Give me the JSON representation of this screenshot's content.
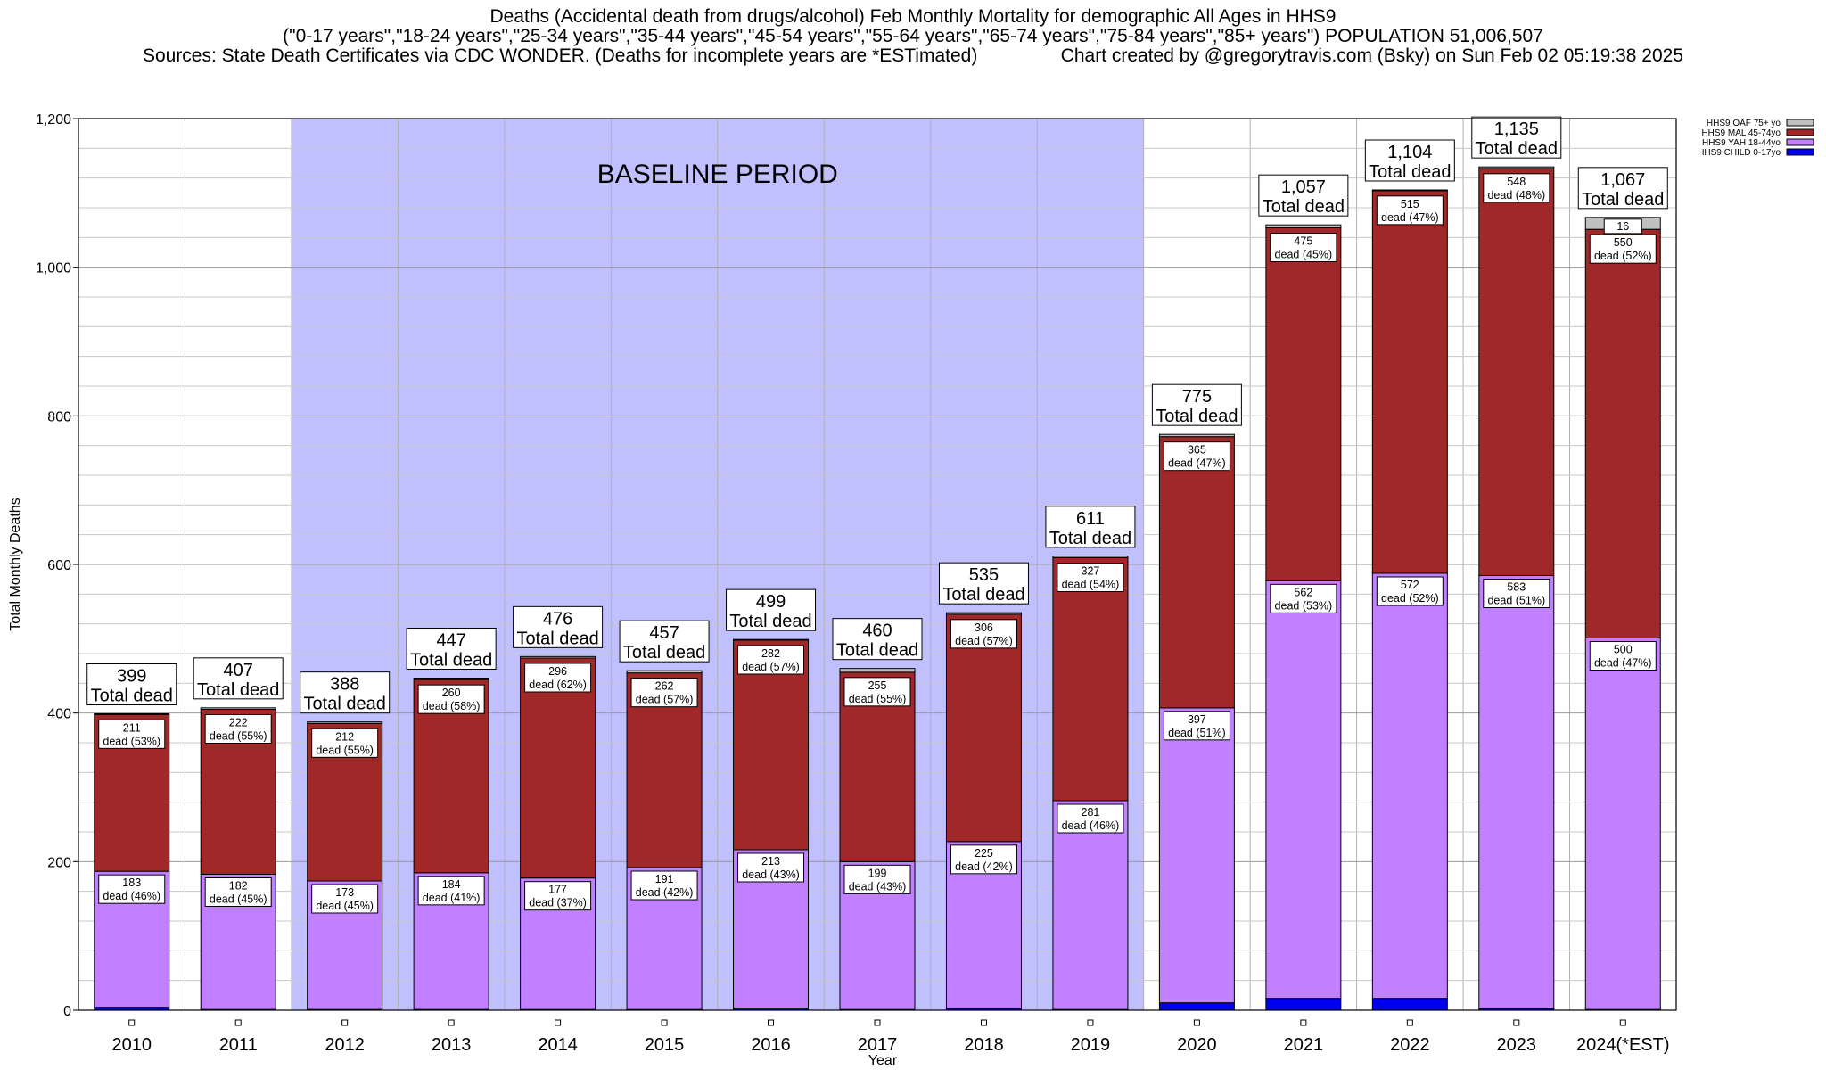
{
  "title": {
    "line1": "Deaths (Accidental death from drugs/alcohol) Feb Monthly Mortality for demographic All Ages in HHS9",
    "line2": "(\"0-17 years\",\"18-24 years\",\"25-34 years\",\"35-44 years\",\"45-54 years\",\"55-64 years\",\"65-74 years\",\"75-84 years\",\"85+ years\") POPULATION 51,006,507",
    "line3": "Sources: State Death Certificates via CDC WONDER. (Deaths for incomplete years are *ESTimated)                Chart created by @gregorytravis.com (Bsky) on Sun Feb 02 05:19:38 2025"
  },
  "chart_data": {
    "type": "bar",
    "stacked": true,
    "xlabel": "Year",
    "ylabel": "Total Monthly Deaths",
    "ylim": [
      0,
      1200
    ],
    "yticks": [
      0,
      200,
      400,
      600,
      800,
      1000,
      1200
    ],
    "ytick_labels": [
      "0",
      "200",
      "400",
      "600",
      "800",
      "1,000",
      "1,200"
    ],
    "grid": true,
    "legend_position": "top-right",
    "categories": [
      "2010",
      "2011",
      "2012",
      "2013",
      "2014",
      "2015",
      "2016",
      "2017",
      "2018",
      "2019",
      "2020",
      "2021",
      "2022",
      "2023",
      "2024(*EST)"
    ],
    "totals": [
      399,
      407,
      388,
      447,
      476,
      457,
      499,
      460,
      535,
      611,
      775,
      1057,
      1104,
      1135,
      1067
    ],
    "total_labels": [
      "399",
      "407",
      "388",
      "447",
      "476",
      "457",
      "499",
      "460",
      "535",
      "611",
      "775",
      "1,057",
      "1,104",
      "1,135",
      "1,067"
    ],
    "total_suffix": "Total dead",
    "series": [
      {
        "name": "HHS9 CHILD 0-17yo",
        "color": "#0000ee",
        "values": [
          4,
          1,
          1,
          1,
          1,
          1,
          3,
          1,
          2,
          1,
          10,
          16,
          16,
          2,
          1
        ]
      },
      {
        "name": "HHS9 YAH 18-44yo",
        "color": "#c080ff",
        "values": [
          183,
          182,
          173,
          184,
          177,
          191,
          213,
          199,
          225,
          281,
          397,
          562,
          572,
          583,
          500
        ]
      },
      {
        "name": "HHS9 MAL 45-74yo",
        "color": "#a02828",
        "values": [
          211,
          222,
          212,
          260,
          296,
          262,
          282,
          255,
          306,
          327,
          365,
          475,
          515,
          548,
          550
        ]
      },
      {
        "name": "HHS9 OAF 75+ yo",
        "color": "#c0c0c0",
        "values": [
          1,
          2,
          2,
          2,
          2,
          3,
          1,
          5,
          2,
          2,
          3,
          4,
          1,
          2,
          16
        ]
      }
    ],
    "segment_labels": {
      "yah": [
        "183\ndead (46%)",
        "182\ndead (45%)",
        "173\ndead (45%)",
        "184\ndead (41%)",
        "177\ndead (37%)",
        "191\ndead (42%)",
        "213\ndead (43%)",
        "199\ndead (43%)",
        "225\ndead (42%)",
        "281\ndead (46%)",
        "397\ndead (51%)",
        "562\ndead (53%)",
        "572\ndead (52%)",
        "583\ndead (51%)",
        "500\ndead (47%)"
      ],
      "mal": [
        "211\ndead (53%)",
        "222\ndead (55%)",
        "212\ndead (55%)",
        "260\ndead (58%)",
        "296\ndead (62%)",
        "262\ndead (57%)",
        "282\ndead (57%)",
        "255\ndead (55%)",
        "306\ndead (57%)",
        "327\ndead (54%)",
        "365\ndead (47%)",
        "475\ndead (45%)",
        "515\ndead (47%)",
        "548\ndead (48%)",
        "550\ndead (52%)"
      ],
      "oaf": [
        "",
        "",
        "",
        "",
        "",
        "",
        "",
        "",
        "",
        "",
        "",
        "",
        "",
        "",
        "16"
      ]
    },
    "legend_order": [
      "HHS9 OAF 75+ yo",
      "HHS9 MAL 45-74yo",
      "HHS9 YAH 18-44yo",
      "HHS9 CHILD 0-17yo"
    ],
    "baseline": {
      "label": "BASELINE PERIOD",
      "from": "2012",
      "to": "2019",
      "color": "#c0c0ff"
    }
  }
}
